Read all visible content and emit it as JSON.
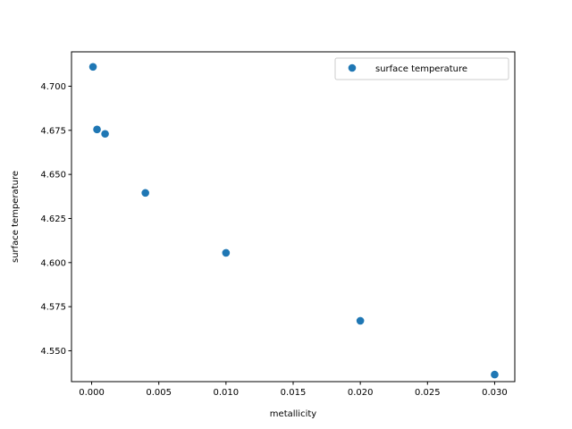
{
  "chart_data": {
    "type": "scatter",
    "title": "",
    "xlabel": "metallicity",
    "ylabel": "surface temperature",
    "xlim": [
      -0.0015,
      0.0315
    ],
    "ylim": [
      4.5325,
      4.7195
    ],
    "xticks": [
      {
        "value": 0.0,
        "label": "0.000"
      },
      {
        "value": 0.005,
        "label": "0.005"
      },
      {
        "value": 0.01,
        "label": "0.010"
      },
      {
        "value": 0.015,
        "label": "0.015"
      },
      {
        "value": 0.02,
        "label": "0.020"
      },
      {
        "value": 0.025,
        "label": "0.025"
      },
      {
        "value": 0.03,
        "label": "0.030"
      }
    ],
    "yticks": [
      {
        "value": 4.55,
        "label": "4.550"
      },
      {
        "value": 4.575,
        "label": "4.575"
      },
      {
        "value": 4.6,
        "label": "4.600"
      },
      {
        "value": 4.625,
        "label": "4.625"
      },
      {
        "value": 4.65,
        "label": "4.650"
      },
      {
        "value": 4.675,
        "label": "4.675"
      },
      {
        "value": 4.7,
        "label": "4.700"
      }
    ],
    "grid": false,
    "legend_position": "top-right",
    "series": [
      {
        "name": "surface temperature",
        "color": "#1f77b4",
        "points": [
          {
            "x": 0.0001,
            "y": 4.711
          },
          {
            "x": 0.0004,
            "y": 4.6755
          },
          {
            "x": 0.001,
            "y": 4.673
          },
          {
            "x": 0.004,
            "y": 4.6395
          },
          {
            "x": 0.01,
            "y": 4.6055
          },
          {
            "x": 0.02,
            "y": 4.567
          },
          {
            "x": 0.03,
            "y": 4.5365
          }
        ]
      }
    ]
  }
}
